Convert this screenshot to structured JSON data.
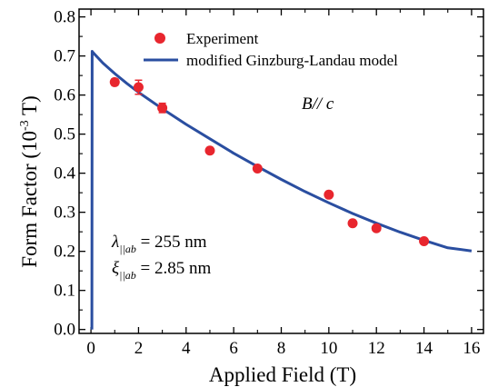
{
  "chart_data": {
    "type": "scatter",
    "xlabel": "Applied Field (T)",
    "ylabel": "Form Factor (10",
    "ylabel_sup": "-3",
    "ylabel_tail": " T)",
    "xlim": [
      -0.5,
      16.5
    ],
    "ylim": [
      -0.01,
      0.82
    ],
    "x_ticks": [
      0,
      2,
      4,
      6,
      8,
      10,
      12,
      14,
      16
    ],
    "y_ticks": [
      "0.0",
      "0.1",
      "0.2",
      "0.3",
      "0.4",
      "0.5",
      "0.6",
      "0.7",
      "0.8"
    ],
    "y_tick_values": [
      0.0,
      0.1,
      0.2,
      0.3,
      0.4,
      0.5,
      0.6,
      0.7,
      0.8
    ],
    "legend_placement": "top-left",
    "grid": false,
    "series": [
      {
        "name": "Experiment",
        "kind": "points",
        "color": "#e8262e",
        "x": [
          1,
          2,
          3,
          5,
          7,
          10,
          11,
          12,
          14
        ],
        "y": [
          0.633,
          0.62,
          0.567,
          0.458,
          0.412,
          0.345,
          0.272,
          0.259,
          0.226
        ],
        "yerr": [
          0.008,
          0.018,
          0.012,
          0.006,
          0.006,
          0.006,
          0.006,
          0.006,
          0.006
        ]
      },
      {
        "name": "modified Ginzburg-Landau model",
        "kind": "line",
        "color": "#2a4ea0",
        "x": [
          0.04,
          0.05,
          0.1,
          0.5,
          1,
          1.5,
          2,
          3,
          4,
          5,
          6,
          7,
          8,
          9,
          10,
          11,
          12,
          13,
          14,
          15,
          16
        ],
        "y": [
          0.0,
          0.712,
          0.708,
          0.682,
          0.655,
          0.63,
          0.607,
          0.565,
          0.525,
          0.488,
          0.451,
          0.417,
          0.384,
          0.353,
          0.324,
          0.297,
          0.272,
          0.249,
          0.228,
          0.209,
          0.201
        ]
      }
    ],
    "annotations": {
      "field_dir": "B// c",
      "lambda_sym": "λ",
      "lambda_sub": "||ab",
      "lambda_val": " = 255 nm",
      "xi_sym": "ξ",
      "xi_sub": "||ab",
      "xi_val": " = 2.85 nm"
    }
  }
}
